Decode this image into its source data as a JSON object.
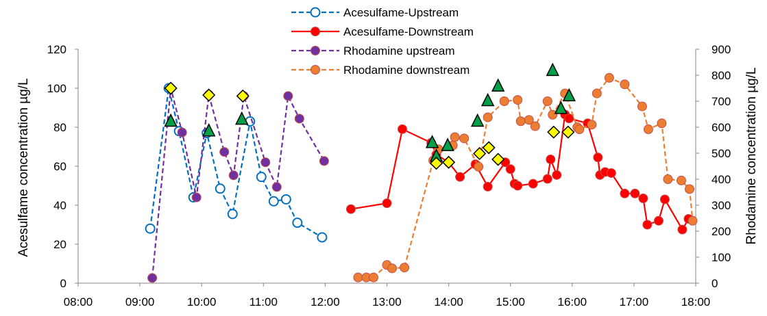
{
  "chart_data": {
    "type": "line",
    "ylabel": "Acesulfame concentration µg/L",
    "y2label": "Rhodamine concentration µg/L",
    "xlim": [
      "08:00",
      "18:00"
    ],
    "ylim": [
      0,
      120
    ],
    "y2lim": [
      0,
      900
    ],
    "x_ticks": [
      "08:00",
      "09:00",
      "10:00",
      "11:00",
      "12:00",
      "13:00",
      "14:00",
      "15:00",
      "16:00",
      "17:00",
      "18:00"
    ],
    "y_ticks": [
      "0",
      "20",
      "40",
      "60",
      "80",
      "100",
      "120"
    ],
    "y2_ticks": [
      "0",
      "100",
      "200",
      "300",
      "400",
      "500",
      "600",
      "700",
      "800",
      "900"
    ],
    "grid": false,
    "legend_position": "top-center",
    "series": [
      {
        "name": "Acesulfame-Upstream",
        "axis": "left",
        "color": "#0070C0",
        "style": "dashed",
        "marker": "open-circle",
        "x": [
          "09:10",
          "09:28",
          "09:38",
          "09:52",
          "10:05",
          "10:18",
          "10:30",
          "10:47",
          "10:58",
          "11:10",
          "11:22",
          "11:33",
          "11:57"
        ],
        "y": [
          28,
          100,
          78,
          44,
          77,
          48.5,
          35.5,
          83,
          54.5,
          42,
          43,
          31,
          23.5
        ]
      },
      {
        "name": "Acesulfame-Downstream",
        "axis": "left",
        "color": "#FF0000",
        "style": "solid",
        "marker": "filled-circle",
        "x": [
          "12:25",
          "13:00",
          "13:15",
          "13:43",
          "13:48",
          "14:00",
          "14:11",
          "14:26",
          "14:38",
          "14:55",
          "15:00",
          "15:04",
          "15:07",
          "15:22",
          "15:36",
          "15:39",
          "15:45",
          "15:53",
          "15:57",
          "16:15",
          "16:25",
          "16:27",
          "16:32",
          "16:38",
          "16:51",
          "17:01",
          "17:09",
          "17:13",
          "17:24",
          "17:30",
          "17:47",
          "17:53"
        ],
        "y": [
          38,
          41,
          79,
          72,
          66,
          62,
          54.5,
          61,
          49.5,
          62,
          58.5,
          51,
          50,
          51,
          53.5,
          63.5,
          55.5,
          86.5,
          84.5,
          82,
          64.5,
          55.5,
          57,
          56.5,
          46,
          46,
          43.5,
          30,
          32,
          43,
          27.5,
          33
        ]
      },
      {
        "name": "Rhodamine upstream",
        "axis": "right",
        "color": "#7030A0",
        "style": "dashed",
        "marker": "filled-circle",
        "x": [
          "09:12",
          "09:30",
          "09:41",
          "09:55",
          "10:07",
          "10:22",
          "10:31",
          "10:41",
          "11:02",
          "11:13",
          "11:24",
          "11:35",
          "11:59"
        ],
        "y": [
          20,
          750,
          580,
          330,
          725,
          505,
          415,
          720,
          465,
          370,
          720,
          633,
          470
        ]
      },
      {
        "name": "Rhodamine downstream",
        "axis": "right",
        "color": "#ED7D31",
        "style": "dashed",
        "marker": "filled-circle",
        "x": [
          "12:32",
          "12:40",
          "12:47",
          "13:00",
          "13:05",
          "13:17",
          "13:45",
          "13:50",
          "14:04",
          "14:06",
          "14:15",
          "14:29",
          "14:38",
          "14:54",
          "15:07",
          "15:10",
          "15:18",
          "15:24",
          "15:36",
          "15:41",
          "15:53",
          "16:05",
          "16:07",
          "16:19",
          "16:24",
          "16:36",
          "16:51",
          "17:08",
          "17:14",
          "17:27",
          "17:33",
          "17:46",
          "17:54",
          "17:57"
        ],
        "y": [
          22,
          22,
          22,
          70,
          57,
          60,
          472,
          515,
          530,
          562,
          557,
          448,
          638,
          700,
          705,
          623,
          628,
          604,
          700,
          648,
          730,
          600,
          592,
          610,
          730,
          790,
          765,
          680,
          592,
          615,
          400,
          395,
          362,
          240
        ]
      }
    ],
    "annotation_markers": [
      {
        "name": "green triangles",
        "shape": "triangle",
        "color": "#00A04A",
        "x": [
          "09:30",
          "10:07",
          "10:39",
          "13:44",
          "13:48",
          "13:59",
          "14:28",
          "14:38",
          "14:48",
          "15:41",
          "15:49",
          "15:57"
        ],
        "y": [
          83,
          78,
          84,
          72,
          65,
          70.5,
          83,
          93.5,
          101,
          109,
          89.5,
          96
        ]
      },
      {
        "name": "yellow diamonds",
        "shape": "diamond",
        "color": "#FFFF00",
        "x": [
          "09:30",
          "10:07",
          "10:40",
          "13:48",
          "14:00",
          "14:30",
          "14:39",
          "14:48",
          "15:42",
          "15:56"
        ],
        "y": [
          100,
          96.5,
          96,
          61.5,
          62,
          66.5,
          69.5,
          63.5,
          77.5,
          77.5
        ]
      }
    ]
  }
}
